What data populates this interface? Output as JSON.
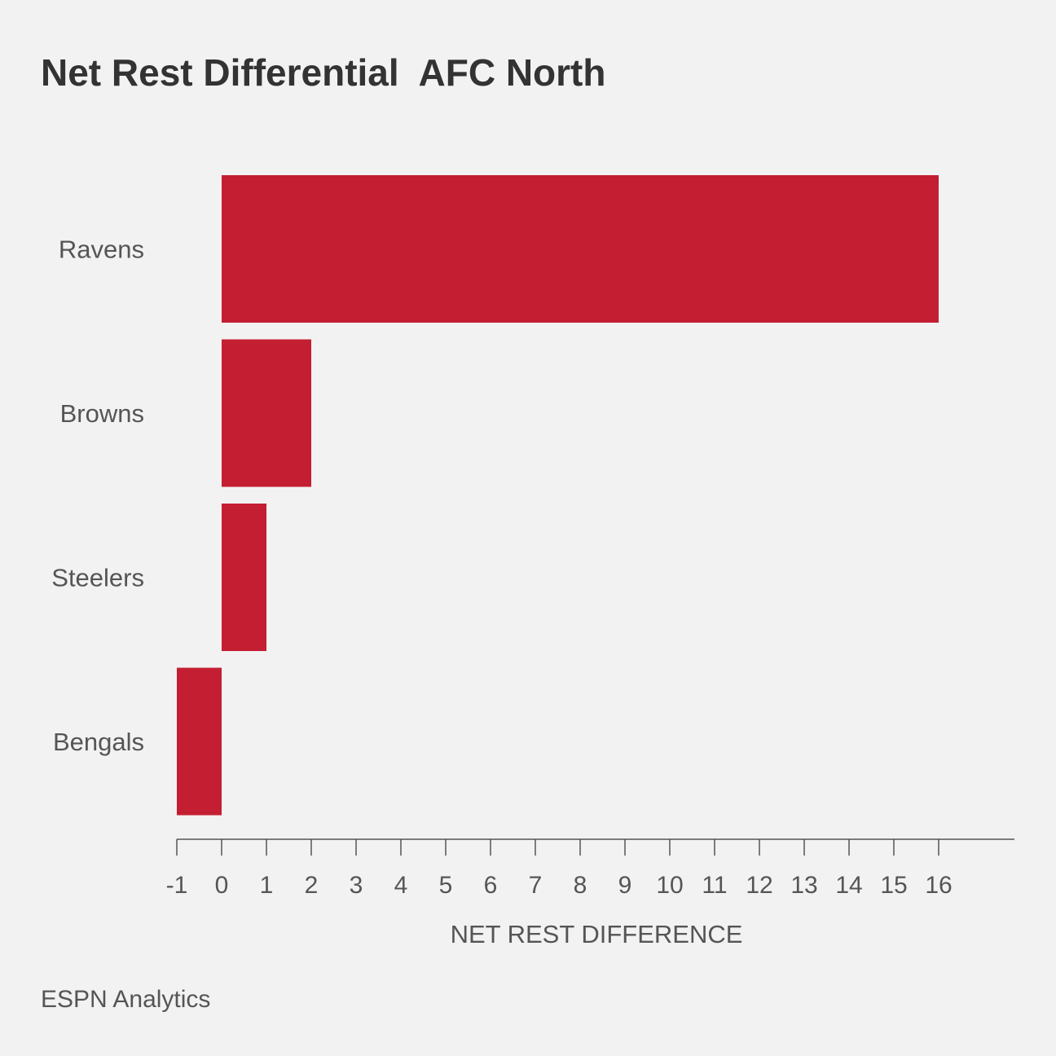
{
  "title": "Net Rest Differential  AFC North",
  "source": "ESPN Analytics",
  "colors": {
    "background": "#f2f2f2",
    "bar": "#c41e32",
    "text": "#333333",
    "label": "#555555",
    "axis": "#555555"
  },
  "chart_data": {
    "type": "bar",
    "orientation": "horizontal",
    "categories": [
      "Ravens",
      "Browns",
      "Steelers",
      "Bengals"
    ],
    "values": [
      16,
      2,
      1,
      -1
    ],
    "xlabel": "NET REST DIFFERENCE",
    "ylabel": "",
    "xlim": [
      -1,
      16
    ],
    "xticks": [
      "-1",
      "0",
      "1",
      "2",
      "3",
      "4",
      "5",
      "6",
      "7",
      "8",
      "9",
      "10",
      "11",
      "12",
      "13",
      "14",
      "15",
      "16"
    ],
    "grid": false,
    "legend": "none"
  }
}
